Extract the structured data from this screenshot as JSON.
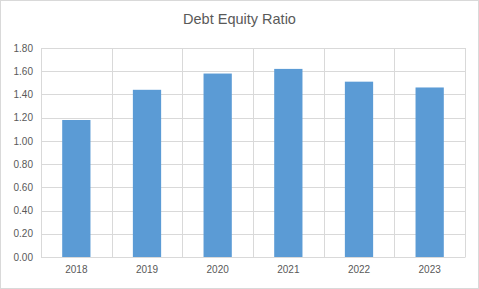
{
  "chart_data": {
    "type": "bar",
    "title": "Debt Equity Ratio",
    "categories": [
      "2018",
      "2019",
      "2020",
      "2021",
      "2022",
      "2023"
    ],
    "values": [
      1.18,
      1.44,
      1.58,
      1.62,
      1.51,
      1.46
    ],
    "color": "#5b9bd5",
    "ylim": [
      0,
      1.8
    ],
    "yticks": [
      {
        "value": 0,
        "label": "0.00"
      },
      {
        "value": 0.2,
        "label": "0.20"
      },
      {
        "value": 0.4,
        "label": "0.40"
      },
      {
        "value": 0.6,
        "label": "0.60"
      },
      {
        "value": 0.8,
        "label": "0.80"
      },
      {
        "value": 1.0,
        "label": "1.00"
      },
      {
        "value": 1.2,
        "label": "1.20"
      },
      {
        "value": 1.4,
        "label": "1.40"
      },
      {
        "value": 1.6,
        "label": "1.60"
      },
      {
        "value": 1.8,
        "label": "1.80"
      }
    ],
    "grid": true
  }
}
